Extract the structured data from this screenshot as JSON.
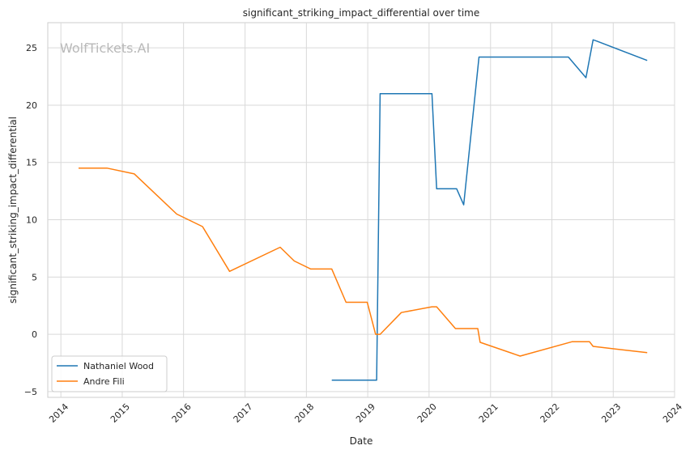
{
  "chart_data": {
    "type": "line",
    "title": "significant_striking_impact_differential over time",
    "xlabel": "Date",
    "ylabel": "significant_striking_impact_differential",
    "watermark": "WolfTickets.AI",
    "xlim": [
      "2013-10-15",
      "2024-01-01"
    ],
    "ylim": [
      -5.5,
      27.2
    ],
    "x_ticks": [
      "2014",
      "2015",
      "2016",
      "2017",
      "2018",
      "2019",
      "2020",
      "2021",
      "2022",
      "2023",
      "2024"
    ],
    "y_ticks": [
      -5,
      0,
      5,
      10,
      15,
      20,
      25
    ],
    "grid": true,
    "legend_position": "lower-left",
    "series": [
      {
        "name": "Nathaniel Wood",
        "color": "#1f77b4",
        "points": [
          [
            "2018-06-01",
            -4.0
          ],
          [
            "2019-02-23",
            -4.0
          ],
          [
            "2019-03-16",
            21.0
          ],
          [
            "2020-01-18",
            21.0
          ],
          [
            "2020-02-15",
            12.7
          ],
          [
            "2020-06-13",
            12.7
          ],
          [
            "2020-07-25",
            11.3
          ],
          [
            "2020-10-24",
            24.2
          ],
          [
            "2022-04-09",
            24.2
          ],
          [
            "2022-07-23",
            22.4
          ],
          [
            "2022-09-03",
            25.7
          ],
          [
            "2022-09-24",
            25.6
          ],
          [
            "2023-07-22",
            23.9
          ]
        ]
      },
      {
        "name": "Andre Fili",
        "color": "#ff7f0e",
        "points": [
          [
            "2014-04-16",
            14.5
          ],
          [
            "2014-10-04",
            14.5
          ],
          [
            "2015-03-14",
            14.0
          ],
          [
            "2015-11-21",
            10.5
          ],
          [
            "2016-04-23",
            9.4
          ],
          [
            "2016-10-01",
            5.5
          ],
          [
            "2017-07-29",
            7.6
          ],
          [
            "2017-10-21",
            6.4
          ],
          [
            "2018-01-27",
            5.7
          ],
          [
            "2018-06-01",
            5.7
          ],
          [
            "2018-08-25",
            2.8
          ],
          [
            "2018-12-29",
            2.8
          ],
          [
            "2019-02-17",
            0.0
          ],
          [
            "2019-03-16",
            0.0
          ],
          [
            "2019-07-20",
            1.9
          ],
          [
            "2020-01-18",
            2.4
          ],
          [
            "2020-02-15",
            2.4
          ],
          [
            "2020-06-06",
            0.5
          ],
          [
            "2020-10-17",
            0.5
          ],
          [
            "2020-10-31",
            -0.7
          ],
          [
            "2021-06-26",
            -1.9
          ],
          [
            "2022-04-30",
            -0.65
          ],
          [
            "2022-08-13",
            -0.65
          ],
          [
            "2022-09-03",
            -1.05
          ],
          [
            "2023-07-22",
            -1.6
          ]
        ]
      }
    ]
  }
}
